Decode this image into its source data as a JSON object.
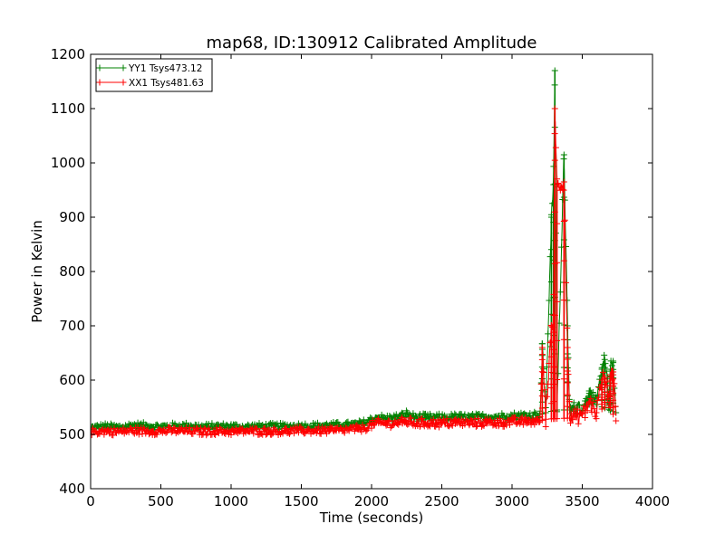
{
  "chart_data": {
    "type": "line",
    "title": "map68, ID:130912 Calibrated Amplitude",
    "xlabel": "Time (seconds)",
    "ylabel": "Power in Kelvin",
    "xlim": [
      0,
      4000
    ],
    "ylim": [
      400,
      1200
    ],
    "xticks": [
      0,
      500,
      1000,
      1500,
      2000,
      2500,
      3000,
      3500,
      4000
    ],
    "yticks": [
      400,
      500,
      600,
      700,
      800,
      900,
      1000,
      1100,
      1200
    ],
    "grid": false,
    "marker": "+",
    "legend_position": "top-left",
    "series": [
      {
        "name": "YY1 Tsys473.12",
        "color": "#008000",
        "points": [
          [
            0,
            512
          ],
          [
            100,
            515
          ],
          [
            200,
            513
          ],
          [
            300,
            517
          ],
          [
            400,
            516
          ],
          [
            500,
            514
          ],
          [
            600,
            516
          ],
          [
            700,
            516
          ],
          [
            800,
            514
          ],
          [
            900,
            515
          ],
          [
            1000,
            515
          ],
          [
            1100,
            514
          ],
          [
            1200,
            515
          ],
          [
            1300,
            515
          ],
          [
            1400,
            515
          ],
          [
            1500,
            516
          ],
          [
            1600,
            516
          ],
          [
            1700,
            517
          ],
          [
            1800,
            517
          ],
          [
            1900,
            519
          ],
          [
            1950,
            522
          ],
          [
            2000,
            528
          ],
          [
            2050,
            531
          ],
          [
            2100,
            529
          ],
          [
            2200,
            532
          ],
          [
            2250,
            538
          ],
          [
            2300,
            532
          ],
          [
            2400,
            531
          ],
          [
            2500,
            531
          ],
          [
            2600,
            532
          ],
          [
            2700,
            531
          ],
          [
            2800,
            532
          ],
          [
            2900,
            533
          ],
          [
            3000,
            534
          ],
          [
            3100,
            535
          ],
          [
            3200,
            537
          ],
          [
            3215,
            667
          ],
          [
            3240,
            540
          ],
          [
            3280,
            900
          ],
          [
            3295,
            960
          ],
          [
            3305,
            1170
          ],
          [
            3320,
            545
          ],
          [
            3370,
            1015
          ],
          [
            3395,
            700
          ],
          [
            3410,
            545
          ],
          [
            3450,
            548
          ],
          [
            3520,
            555
          ],
          [
            3550,
            580
          ],
          [
            3600,
            555
          ],
          [
            3640,
            620
          ],
          [
            3660,
            638
          ],
          [
            3690,
            570
          ],
          [
            3700,
            620
          ],
          [
            3720,
            635
          ],
          [
            3740,
            540
          ]
        ]
      },
      {
        "name": "XX1 Tsys481.63",
        "color": "#ff0000",
        "points": [
          [
            0,
            505
          ],
          [
            100,
            506
          ],
          [
            200,
            505
          ],
          [
            300,
            507
          ],
          [
            400,
            506
          ],
          [
            500,
            506
          ],
          [
            600,
            507
          ],
          [
            700,
            506
          ],
          [
            800,
            505
          ],
          [
            900,
            506
          ],
          [
            1000,
            505
          ],
          [
            1100,
            506
          ],
          [
            1200,
            506
          ],
          [
            1300,
            506
          ],
          [
            1400,
            506
          ],
          [
            1500,
            507
          ],
          [
            1600,
            507
          ],
          [
            1700,
            507
          ],
          [
            1800,
            508
          ],
          [
            1900,
            510
          ],
          [
            1950,
            512
          ],
          [
            2000,
            517
          ],
          [
            2050,
            521
          ],
          [
            2100,
            520
          ],
          [
            2200,
            522
          ],
          [
            2250,
            524
          ],
          [
            2300,
            521
          ],
          [
            2400,
            521
          ],
          [
            2500,
            521
          ],
          [
            2600,
            522
          ],
          [
            2700,
            521
          ],
          [
            2800,
            522
          ],
          [
            2900,
            522
          ],
          [
            3000,
            523
          ],
          [
            3100,
            524
          ],
          [
            3200,
            525
          ],
          [
            3215,
            660
          ],
          [
            3240,
            528
          ],
          [
            3280,
            700
          ],
          [
            3295,
            720
          ],
          [
            3305,
            1100
          ],
          [
            3320,
            960
          ],
          [
            3370,
            965
          ],
          [
            3395,
            660
          ],
          [
            3410,
            530
          ],
          [
            3450,
            532
          ],
          [
            3520,
            540
          ],
          [
            3550,
            560
          ],
          [
            3600,
            540
          ],
          [
            3640,
            600
          ],
          [
            3660,
            605
          ],
          [
            3690,
            555
          ],
          [
            3700,
            610
          ],
          [
            3720,
            615
          ],
          [
            3740,
            525
          ]
        ]
      }
    ]
  }
}
